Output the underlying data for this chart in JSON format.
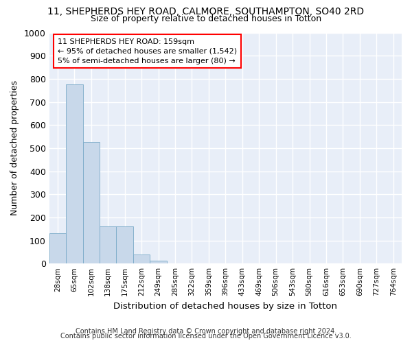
{
  "title1": "11, SHEPHERDS HEY ROAD, CALMORE, SOUTHAMPTON, SO40 2RD",
  "title2": "Size of property relative to detached houses in Totton",
  "xlabel": "Distribution of detached houses by size in Totton",
  "ylabel": "Number of detached properties",
  "bar_color": "#c8d8ea",
  "bar_edge_color": "#7aaac8",
  "background_color": "#e8eef8",
  "grid_color": "#ffffff",
  "fig_bg_color": "#ffffff",
  "bin_labels": [
    "28sqm",
    "65sqm",
    "102sqm",
    "138sqm",
    "175sqm",
    "212sqm",
    "249sqm",
    "285sqm",
    "322sqm",
    "359sqm",
    "396sqm",
    "433sqm",
    "469sqm",
    "506sqm",
    "543sqm",
    "580sqm",
    "616sqm",
    "653sqm",
    "690sqm",
    "727sqm",
    "764sqm"
  ],
  "bar_heights": [
    130,
    775,
    525,
    160,
    160,
    38,
    13,
    0,
    0,
    0,
    0,
    0,
    0,
    0,
    0,
    0,
    0,
    0,
    0,
    0,
    0
  ],
  "ylim": [
    0,
    1000
  ],
  "yticks": [
    0,
    100,
    200,
    300,
    400,
    500,
    600,
    700,
    800,
    900,
    1000
  ],
  "annotation_box_text": "11 SHEPHERDS HEY ROAD: 159sqm\n← 95% of detached houses are smaller (1,542)\n5% of semi-detached houses are larger (80) →",
  "footer1": "Contains HM Land Registry data © Crown copyright and database right 2024.",
  "footer2": "Contains public sector information licensed under the Open Government Licence v3.0."
}
